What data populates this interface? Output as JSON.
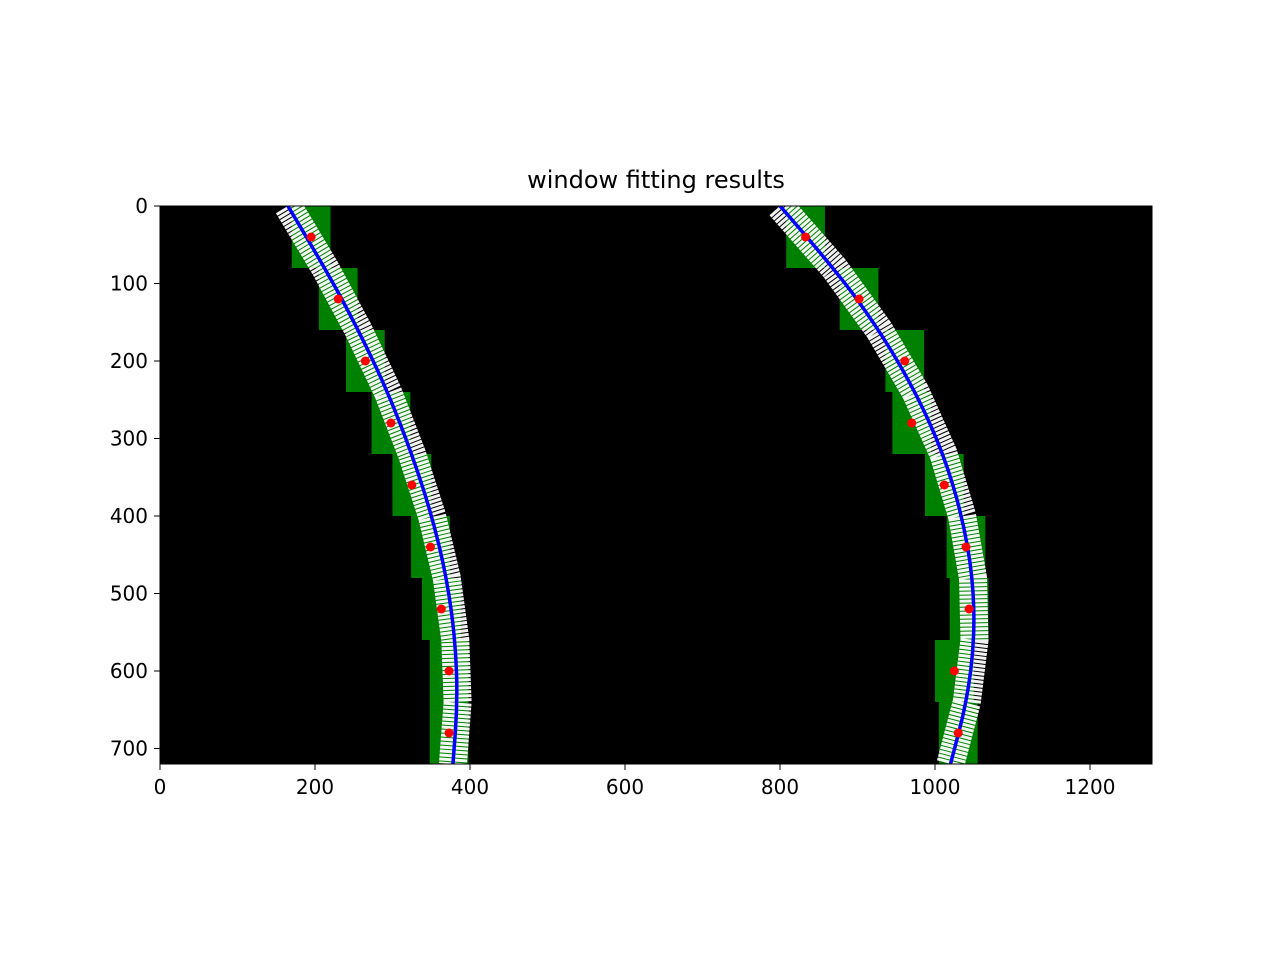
{
  "chart_data": {
    "type": "scatter",
    "title": "window fitting results",
    "xlabel": "",
    "ylabel": "",
    "xlim": [
      0,
      1280
    ],
    "ylim": [
      720,
      0
    ],
    "y_inverted": true,
    "image_background": "binary lane-line mask (white pixels on black) with green fitted search windows",
    "xticks": [
      "0",
      "200",
      "400",
      "600",
      "800",
      "1000",
      "1200"
    ],
    "yticks": [
      "0",
      "100",
      "200",
      "300",
      "400",
      "500",
      "600",
      "700"
    ],
    "grid": false,
    "colors": {
      "background": "#000000",
      "lane_pixels": "#ffffff",
      "windows": "#008000",
      "centroids": "#ff0000",
      "fit_curve": "#0000ff"
    },
    "windows": {
      "height": 80,
      "width": 50,
      "left_centers": [
        {
          "x": 195,
          "y": 40
        },
        {
          "x": 230,
          "y": 120
        },
        {
          "x": 265,
          "y": 200
        },
        {
          "x": 298,
          "y": 280
        },
        {
          "x": 325,
          "y": 360
        },
        {
          "x": 349,
          "y": 440
        },
        {
          "x": 363,
          "y": 520
        },
        {
          "x": 373,
          "y": 600
        },
        {
          "x": 373,
          "y": 680
        }
      ],
      "right_centers": [
        {
          "x": 833,
          "y": 40
        },
        {
          "x": 902,
          "y": 120
        },
        {
          "x": 961,
          "y": 200
        },
        {
          "x": 970,
          "y": 280
        },
        {
          "x": 1012,
          "y": 360
        },
        {
          "x": 1040,
          "y": 440
        },
        {
          "x": 1044,
          "y": 520
        },
        {
          "x": 1025,
          "y": 600
        },
        {
          "x": 1030,
          "y": 680
        }
      ]
    },
    "series": [
      {
        "type": "scatter",
        "color": "#ff0000",
        "points": [
          {
            "x": 195,
            "y": 40
          },
          {
            "x": 230,
            "y": 120
          },
          {
            "x": 265,
            "y": 200
          },
          {
            "x": 298,
            "y": 280
          },
          {
            "x": 325,
            "y": 360
          },
          {
            "x": 349,
            "y": 440
          },
          {
            "x": 363,
            "y": 520
          },
          {
            "x": 373,
            "y": 600
          },
          {
            "x": 373,
            "y": 680
          },
          {
            "x": 833,
            "y": 40
          },
          {
            "x": 902,
            "y": 120
          },
          {
            "x": 961,
            "y": 200
          },
          {
            "x": 970,
            "y": 280
          },
          {
            "x": 1012,
            "y": 360
          },
          {
            "x": 1040,
            "y": 440
          },
          {
            "x": 1044,
            "y": 520
          },
          {
            "x": 1025,
            "y": 600
          },
          {
            "x": 1030,
            "y": 680
          }
        ]
      },
      {
        "type": "line",
        "color": "#0000ff",
        "fit": "x = a*y^2 + b*y + c",
        "points": [
          {
            "x": 165,
            "y": 0
          },
          {
            "x": 213,
            "y": 80
          },
          {
            "x": 256,
            "y": 160
          },
          {
            "x": 294,
            "y": 240
          },
          {
            "x": 325,
            "y": 320
          },
          {
            "x": 351,
            "y": 400
          },
          {
            "x": 370,
            "y": 480
          },
          {
            "x": 381,
            "y": 560
          },
          {
            "x": 384,
            "y": 640
          },
          {
            "x": 378,
            "y": 720
          }
        ]
      },
      {
        "type": "line",
        "color": "#0000ff",
        "fit": "x = a*y^2 + b*y + c",
        "points": [
          {
            "x": 800,
            "y": 0
          },
          {
            "x": 870,
            "y": 80
          },
          {
            "x": 928,
            "y": 160
          },
          {
            "x": 975,
            "y": 240
          },
          {
            "x": 1011,
            "y": 320
          },
          {
            "x": 1035,
            "y": 400
          },
          {
            "x": 1049,
            "y": 480
          },
          {
            "x": 1051,
            "y": 560
          },
          {
            "x": 1041,
            "y": 640
          },
          {
            "x": 1020,
            "y": 720
          }
        ]
      }
    ]
  }
}
